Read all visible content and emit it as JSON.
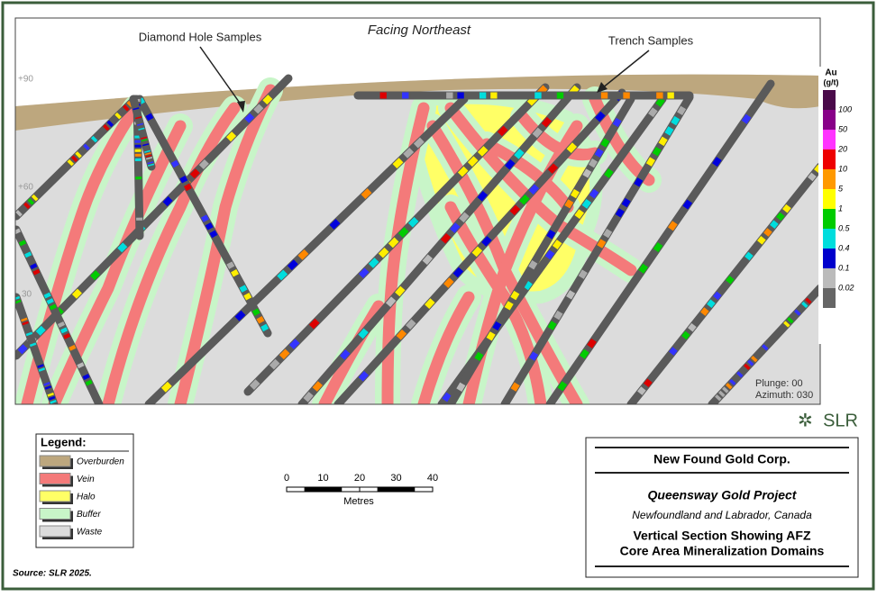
{
  "view_label": "Facing Northeast",
  "callouts": [
    "Diamond Hole Samples",
    "Trench Samples"
  ],
  "elevation_labels": [
    "+90",
    "+60",
    "30"
  ],
  "orientation": {
    "plunge": "Plunge: 00",
    "azimuth": "Azimuth: 030"
  },
  "color_scale": {
    "title": "Au",
    "unit": "(g/t)",
    "labels": [
      "100",
      "50",
      "20",
      "10",
      "5",
      "1",
      "0.5",
      "0.4",
      "0.1",
      "0.02"
    ]
  },
  "logo": "SLR",
  "legend": {
    "title": "Legend:",
    "items": [
      "Overburden",
      "Vein",
      "Halo",
      "Buffer",
      "Waste"
    ]
  },
  "scale_bar": {
    "labels": [
      "0",
      "10",
      "20",
      "30",
      "40"
    ],
    "unit": "Metres"
  },
  "title_block": {
    "company": "New Found Gold Corp.",
    "project": "Queensway Gold Project",
    "location": "Newfoundland and Labrador, Canada",
    "title_lines": [
      "Vertical Section Showing AFZ",
      "Core Area Mineralization Domains"
    ]
  },
  "source": "Source: SLR 2025."
}
